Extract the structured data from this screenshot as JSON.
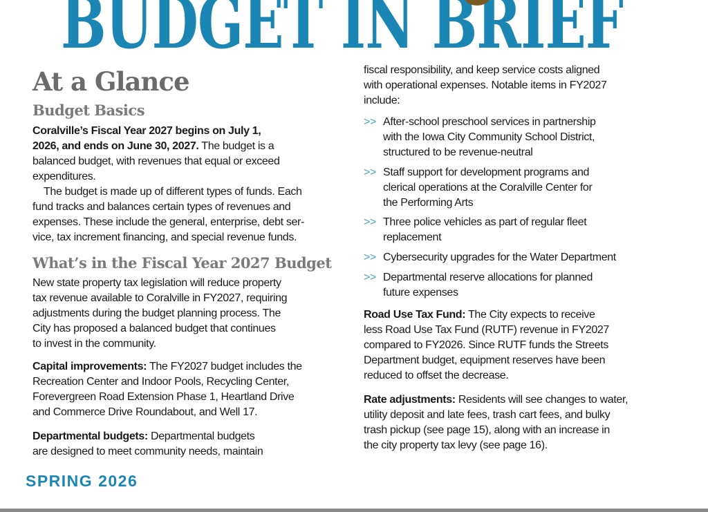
{
  "title": "BUDGET IN BRIEF",
  "heading": "At a Glance",
  "basics": {
    "heading": "Budget Basics",
    "p1_bold": [
      "Coralville’s Fiscal Year 2027 begins on July 1,",
      "2026, and ends on June 30, 2027."
    ],
    "p1_rest": [
      " The budget is a",
      "balanced budget, with revenues that equal or exceed",
      "expenditures."
    ],
    "p2": [
      "The budget is made up of different types of funds. Each",
      "fund tracks and balances certain types of revenues and",
      "expenses. These include the general, enterprise, debt ser-",
      "vice, tax increment financing, and special revenue funds."
    ]
  },
  "fy": {
    "heading": "What’s in the Fiscal Year 2027 Budget",
    "p1": [
      "New state property tax legislation will reduce property",
      "tax revenue available to Coralville in FY2027, requiring",
      "adjustments during the budget planning process. The",
      "City has proposed a balanced budget that continues",
      "to invest in the community."
    ],
    "capital_label": "Capital improvements:",
    "capital": [
      " The FY2027 budget includes the",
      "Recreation Center and Indoor Pools, Recycling Center,",
      "Forevergreen Road Extension Phase 1, Heartland Drive",
      "and Commerce Drive Roundabout, and Well 17."
    ],
    "dept_label": "Departmental budgets:",
    "dept": [
      " Departmental budgets",
      "are designed to meet community needs, maintain"
    ]
  },
  "right": {
    "cont": [
      "fiscal responsibility, and keep service costs aligned",
      "with operational expenses. Notable items in FY2027",
      "include:"
    ],
    "bullet_marker": ">>",
    "bullets": [
      [
        "After-school preschool services in partnership",
        "with the Iowa City Community School District,",
        "structured to be revenue-neutral"
      ],
      [
        "Staff support for development programs and",
        "clerical operations at the Coralville Center for",
        "the Performing Arts"
      ],
      [
        "Three police vehicles as part of regular fleet",
        "replacement"
      ],
      [
        "Cybersecurity upgrades for the Water Department"
      ],
      [
        "Departmental reserve allocations for planned",
        "future expenses"
      ]
    ],
    "road_label": "Road Use Tax Fund:",
    "road": [
      " The City expects to receive",
      "less Road Use Tax Fund (RUTF) revenue in FY2027",
      "compared to FY2026. Since RUTF funds the Streets",
      "Department budget, equipment reserves have been",
      "reduced to offset the decrease."
    ],
    "rate_label": "Rate adjustments:",
    "rate": [
      " Residents will see changes to water,",
      "utility deposit and late fees, trash cart fees, and bulky",
      "trash pickup (see page 15), along with an increase in",
      "the city property tax levy (see page 16)."
    ]
  },
  "footer": "SPRING 2026",
  "colors": {
    "accent": "#1b86b3",
    "heading_gray": "#6b6b6b",
    "bullet": "#4ba3cc"
  }
}
